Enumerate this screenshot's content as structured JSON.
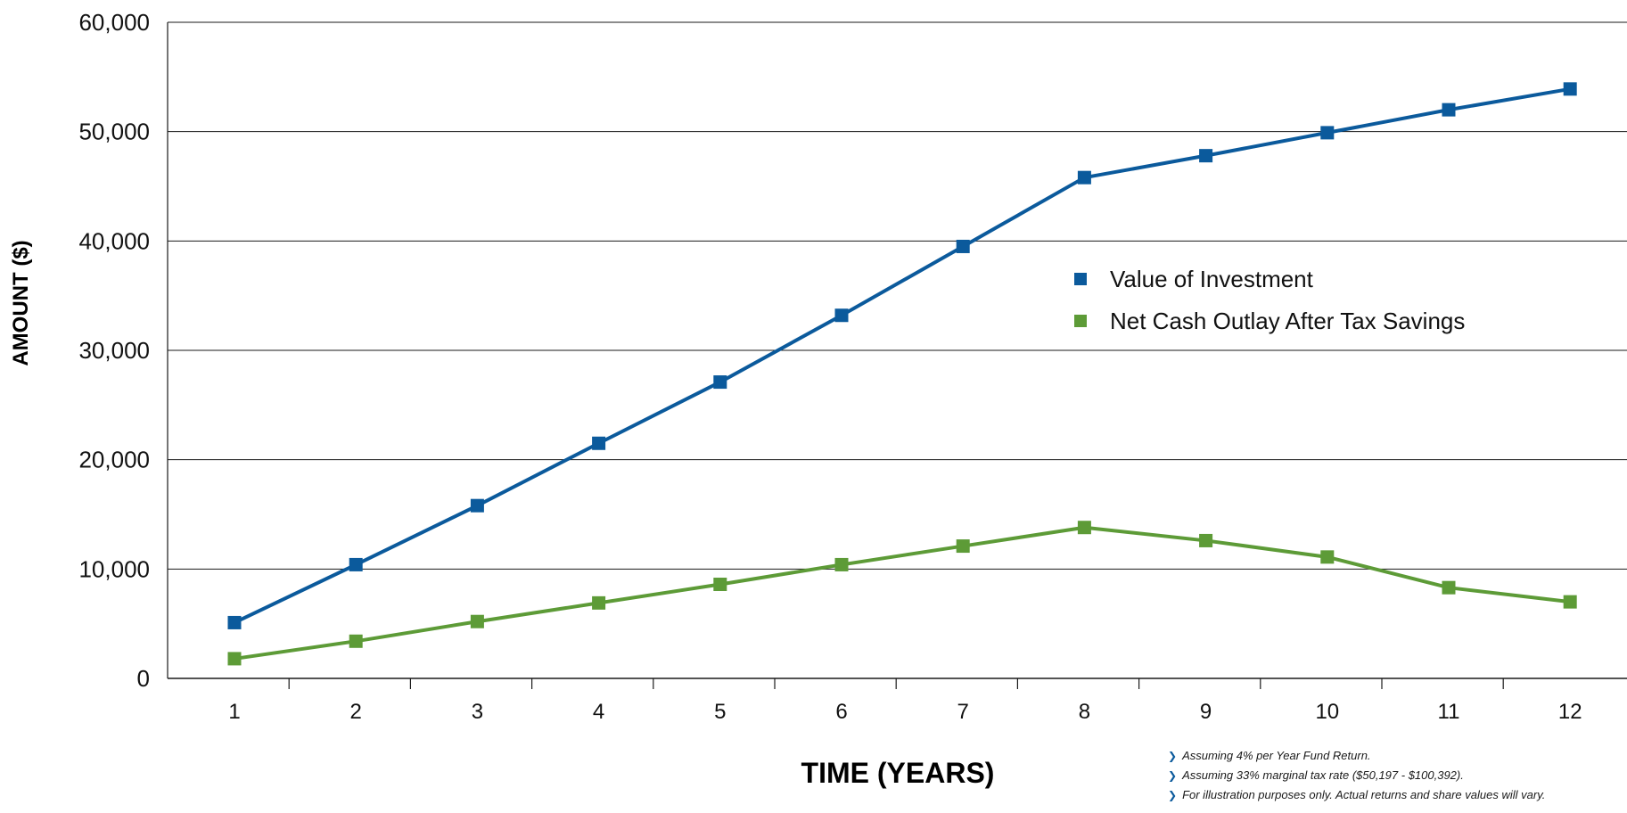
{
  "chart_data": {
    "type": "line",
    "x": [
      1,
      2,
      3,
      4,
      5,
      6,
      7,
      8,
      9,
      10,
      11,
      12
    ],
    "series": [
      {
        "name": "Value of Investment",
        "color": "#0b5a9c",
        "values": [
          5100,
          10400,
          15800,
          21500,
          27100,
          33200,
          39500,
          45800,
          47800,
          49900,
          52000,
          53900
        ]
      },
      {
        "name": "Net Cash Outlay After Tax Savings",
        "color": "#5d9b37",
        "values": [
          1800,
          3400,
          5200,
          6900,
          8600,
          10400,
          12100,
          13800,
          12600,
          11100,
          8300,
          7000
        ]
      }
    ],
    "xlabel": "TIME (YEARS)",
    "ylabel": "AMOUNT ($)",
    "ylim": [
      0,
      60000
    ],
    "yticks": [
      "0",
      "10,000",
      "20,000",
      "30,000",
      "40,000",
      "50,000",
      "60,000"
    ],
    "xticks": [
      "1",
      "2",
      "3",
      "4",
      "5",
      "6",
      "7",
      "8",
      "9",
      "10",
      "11",
      "12"
    ],
    "grid": "horizontal",
    "legend_position": "center-right"
  },
  "notes": [
    "Assuming 4% per Year Fund Return.",
    "Assuming 33% marginal tax rate ($50,197 - $100,392).",
    "For illustration purposes only. Actual returns and share values will vary."
  ],
  "colors": {
    "grid": "#1a1a1a",
    "bullet": "#0b5a9c"
  }
}
